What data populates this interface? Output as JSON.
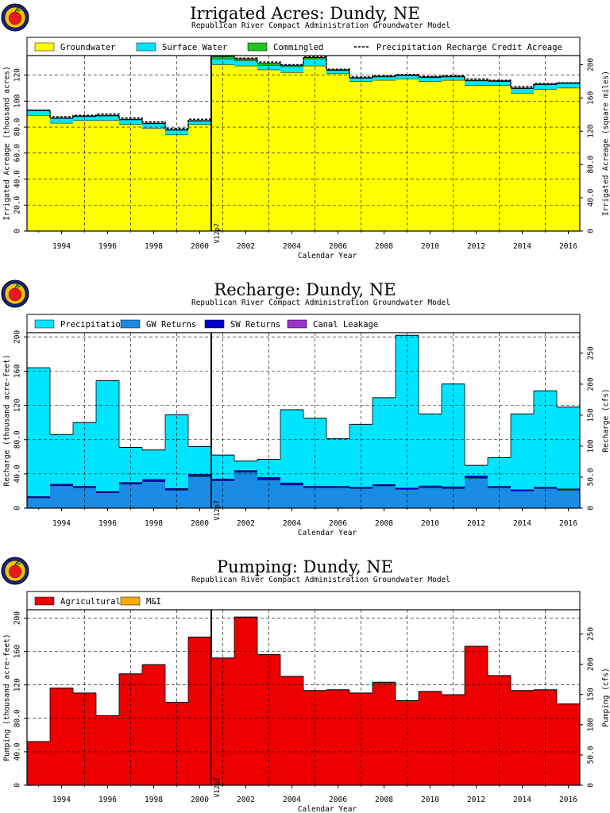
{
  "chart_data": [
    {
      "type": "bar",
      "title": "Irrigated Acres: Dundy, NE",
      "subtitle": "Republican River Compact Administration Groundwater Model",
      "xlabel": "Calendar Year",
      "ylabel": "Irrigated Acreage (thousand acres)",
      "y2label": "Irrigated Acreage (square miles)",
      "stacked": true,
      "ylim": [
        0,
        135
      ],
      "yticks": [
        "0",
        "20.0",
        "40.0",
        "60.0",
        "80.0",
        "100",
        "120"
      ],
      "ytick_values": [
        0,
        20,
        40,
        60,
        80,
        100,
        120
      ],
      "y2lim": [
        0,
        210.9
      ],
      "y2ticks": [
        "0",
        "40.0",
        "80.0",
        "120",
        "160",
        "200"
      ],
      "y2tick_values": [
        0,
        40,
        80,
        120,
        160,
        200
      ],
      "x": [
        1993,
        1994,
        1995,
        1996,
        1997,
        1998,
        1999,
        2000,
        2001,
        2002,
        2003,
        2004,
        2005,
        2006,
        2007,
        2008,
        2009,
        2010,
        2011,
        2012,
        2013,
        2014,
        2015,
        2016
      ],
      "xticks": [
        "1994",
        "1996",
        "1998",
        "2000",
        "2002",
        "2004",
        "2006",
        "2008",
        "2010",
        "2012",
        "2014",
        "2016"
      ],
      "marker": {
        "year": 2000.5,
        "label": "V12p7"
      },
      "legend_location": "top",
      "series": [
        {
          "name": "Groundwater",
          "color": "#ffff00",
          "values": [
            89,
            83,
            85,
            85,
            82,
            79,
            74,
            82,
            128,
            127,
            124,
            122,
            127,
            121,
            115,
            116,
            117,
            115,
            116,
            112,
            112,
            106,
            109,
            110
          ]
        },
        {
          "name": "Surface Water",
          "color": "#00e5ff",
          "values": [
            3.5,
            3.5,
            3.0,
            3.5,
            3.5,
            3.5,
            3.5,
            2.5,
            4.5,
            4.0,
            3.5,
            4.5,
            5.5,
            2.5,
            2.5,
            2.5,
            2.5,
            3.0,
            2.5,
            3.5,
            3.0,
            3.5,
            3.5,
            3.5
          ]
        },
        {
          "name": "Commingled",
          "color": "#22c322",
          "values": [
            0.5,
            0.5,
            0.5,
            0.5,
            0.5,
            0.5,
            0.5,
            0.5,
            2.0,
            1.5,
            1.5,
            1.0,
            1.0,
            0.5,
            0.5,
            0.5,
            0.5,
            0.5,
            0.5,
            0.5,
            0.5,
            0.5,
            0.5,
            0.5
          ]
        }
      ],
      "lines": [
        {
          "name": "Precipitation Recharge Credit Acreage",
          "style": "dashed",
          "values": [
            93,
            88,
            89,
            90,
            87,
            84,
            79,
            86,
            134.5,
            133,
            130,
            128,
            134,
            124.5,
            118.5,
            119.5,
            120.5,
            119,
            119.5,
            117,
            116,
            111,
            113.5,
            114
          ]
        }
      ]
    },
    {
      "type": "bar",
      "title": "Recharge: Dundy, NE",
      "subtitle": "Republican River Compact Administration Groundwater Model",
      "xlabel": "Calendar Year",
      "ylabel": "Recharge (thousand acre-feet)",
      "y2label": "Recharge (cfs)",
      "stacked": true,
      "ylim": [
        0,
        205
      ],
      "yticks": [
        "0",
        "40.0",
        "80.0",
        "120",
        "160",
        "200"
      ],
      "ytick_values": [
        0,
        40,
        80,
        120,
        160,
        200
      ],
      "y2lim": [
        0,
        283.1
      ],
      "y2ticks": [
        "0",
        "50.0",
        "100",
        "150",
        "200",
        "250"
      ],
      "y2tick_values": [
        0,
        50,
        100,
        150,
        200,
        250
      ],
      "x": [
        1993,
        1994,
        1995,
        1996,
        1997,
        1998,
        1999,
        2000,
        2001,
        2002,
        2003,
        2004,
        2005,
        2006,
        2007,
        2008,
        2009,
        2010,
        2011,
        2012,
        2013,
        2014,
        2015,
        2016
      ],
      "xticks": [
        "1994",
        "1996",
        "1998",
        "2000",
        "2002",
        "2004",
        "2006",
        "2008",
        "2010",
        "2012",
        "2014",
        "2016"
      ],
      "marker": {
        "year": 2000.5,
        "label": "V12p7"
      },
      "legend_location": "top",
      "series": [
        {
          "name": "GW Returns",
          "color": "#1a8ce6",
          "values": [
            12,
            26,
            24,
            18,
            28,
            31,
            21,
            37,
            32,
            42,
            33,
            27,
            24,
            24,
            23,
            26,
            22,
            24,
            23,
            35,
            24,
            20,
            23,
            21
          ]
        },
        {
          "name": "SW Returns",
          "color": "#0000cc",
          "values": [
            1.5,
            2.0,
            1.5,
            1.5,
            2.0,
            2.5,
            2.0,
            2.5,
            2.0,
            2.0,
            3.0,
            2.5,
            1.5,
            1.5,
            1.5,
            1.5,
            1.5,
            2.0,
            2.0,
            2.5,
            1.5,
            1.5,
            1.5,
            1.5
          ]
        },
        {
          "name": "Canal Leakage",
          "color": "#9933cc",
          "values": [
            0,
            0,
            0,
            0,
            0,
            0,
            0,
            0,
            0,
            0,
            0,
            0,
            0,
            0,
            0,
            0,
            0,
            0,
            0,
            0,
            0,
            0,
            0,
            0
          ]
        },
        {
          "name": "Precipitation",
          "color": "#00e5ff",
          "values": [
            150.5,
            58,
            74.5,
            129.5,
            41,
            34.5,
            86,
            32.5,
            28,
            11,
            21,
            85.5,
            79.5,
            55.5,
            73.5,
            101.5,
            178.5,
            84,
            120,
            12.5,
            33.5,
            88.5,
            112.5,
            95.5
          ]
        }
      ]
    },
    {
      "type": "bar",
      "title": "Pumping: Dundy, NE",
      "subtitle": "Republican River Compact Administration Groundwater Model",
      "xlabel": "Calendar Year",
      "ylabel": "Pumping (thousand acre-feet)",
      "y2label": "Pumping (cfs)",
      "stacked": true,
      "ylim": [
        0,
        210
      ],
      "yticks": [
        "0",
        "40.0",
        "80.0",
        "120",
        "160",
        "200"
      ],
      "ytick_values": [
        0,
        40,
        80,
        120,
        160,
        200
      ],
      "y2lim": [
        0,
        290
      ],
      "y2ticks": [
        "0",
        "50.0",
        "100",
        "150",
        "200",
        "250"
      ],
      "y2tick_values": [
        0,
        50,
        100,
        150,
        200,
        250
      ],
      "x": [
        1993,
        1994,
        1995,
        1996,
        1997,
        1998,
        1999,
        2000,
        2001,
        2002,
        2003,
        2004,
        2005,
        2006,
        2007,
        2008,
        2009,
        2010,
        2011,
        2012,
        2013,
        2014,
        2015,
        2016
      ],
      "xticks": [
        "1994",
        "1996",
        "1998",
        "2000",
        "2002",
        "2004",
        "2006",
        "2008",
        "2010",
        "2012",
        "2014",
        "2016"
      ],
      "marker": {
        "year": 2000.5,
        "label": "V12p7"
      },
      "legend_location": "top",
      "series": [
        {
          "name": "Agricultural",
          "color": "#ee0000",
          "values": [
            52,
            116,
            110,
            83,
            133,
            144,
            99,
            177,
            152,
            201,
            156,
            130,
            113,
            114,
            110,
            123,
            101,
            112,
            108,
            166,
            131,
            113,
            114,
            97
          ]
        },
        {
          "name": "M&I",
          "color": "#ffaa00",
          "values": [
            0.3,
            0.3,
            0.3,
            0.3,
            0.3,
            0.3,
            0.3,
            0.3,
            0.3,
            0.3,
            0.3,
            0.3,
            0.3,
            0.3,
            0.3,
            0.3,
            0.3,
            0.3,
            0.3,
            0.3,
            0.3,
            0.3,
            0.3,
            0.3
          ]
        }
      ]
    }
  ]
}
